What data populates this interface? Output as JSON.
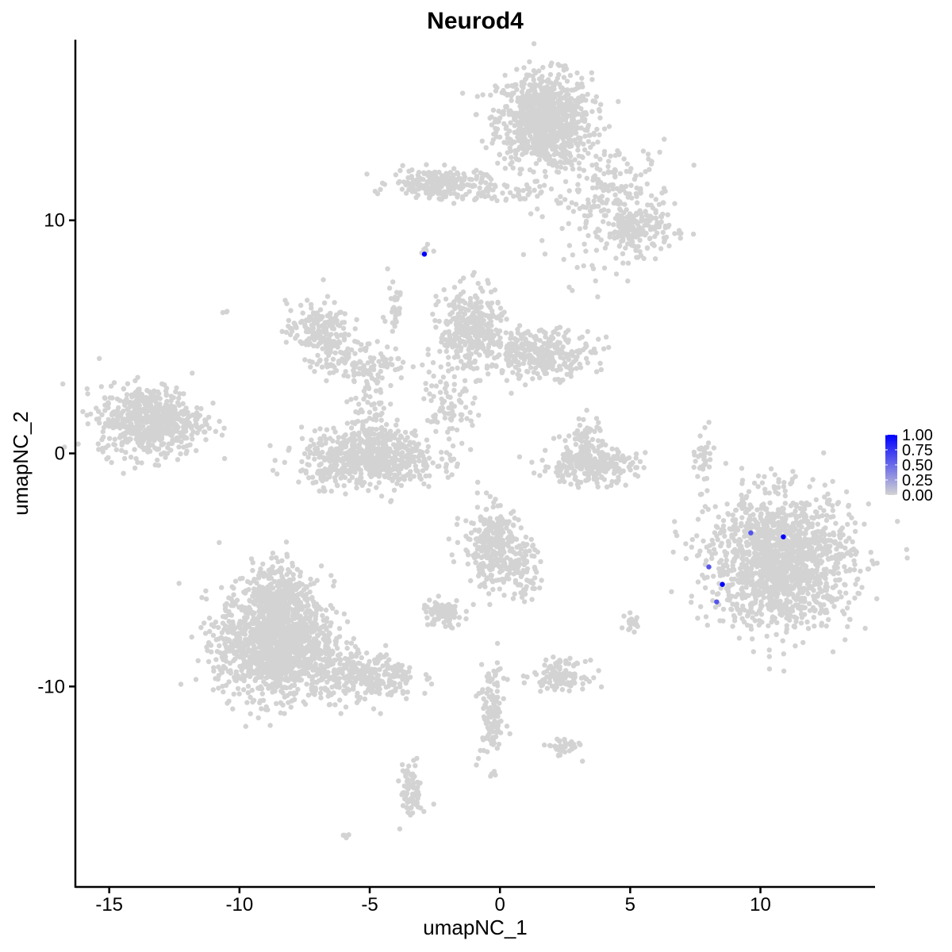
{
  "chart_data": {
    "type": "scatter",
    "title": "Neurod4",
    "xlabel": "umapNC_1",
    "ylabel": "umapNC_2",
    "xlim": [
      -16.3,
      14.4
    ],
    "ylim": [
      -18.6,
      17.75
    ],
    "xticks": [
      -15,
      -10,
      -5,
      0,
      5,
      10
    ],
    "yticks": [
      -10,
      0,
      10
    ],
    "xtick_labels": [
      "-15",
      "-10",
      "-5",
      "0",
      "5",
      "10"
    ],
    "ytick_labels": [
      "-10",
      "0",
      "10"
    ],
    "grid": false,
    "low_color": "#d3d3d3",
    "high_color": "#0000ff",
    "legend": {
      "placement": "right",
      "range": [
        0,
        1
      ],
      "labels": [
        "1.00",
        "0.75",
        "0.50",
        "0.25",
        "0.00"
      ],
      "values": [
        1.0,
        0.75,
        0.5,
        0.25,
        0.0
      ]
    },
    "background_clusters_expression": 0,
    "clusters": [
      {
        "cx": 1.7,
        "cy": 14.3,
        "sx": 0.9,
        "sy": 1.0,
        "n": 900
      },
      {
        "cx": 4.3,
        "cy": 10.8,
        "sx": 1.2,
        "sy": 1.3,
        "n": 250
      },
      {
        "cx": 5.3,
        "cy": 9.6,
        "sx": 0.6,
        "sy": 0.5,
        "n": 150
      },
      {
        "cx": -2.4,
        "cy": 11.6,
        "sx": 0.9,
        "sy": 0.3,
        "n": 220
      },
      {
        "cx": -0.3,
        "cy": 11.1,
        "sx": 1.0,
        "sy": 0.2,
        "n": 60
      },
      {
        "cx": -13.4,
        "cy": 1.4,
        "sx": 1.0,
        "sy": 0.75,
        "n": 600
      },
      {
        "cx": -7.0,
        "cy": 5.3,
        "sx": 0.6,
        "sy": 0.6,
        "n": 180
      },
      {
        "cx": -5.3,
        "cy": 3.9,
        "sx": 0.9,
        "sy": 0.4,
        "n": 120
      },
      {
        "cx": -5.0,
        "cy": -0.2,
        "sx": 1.3,
        "sy": 0.6,
        "n": 650
      },
      {
        "cx": -4.9,
        "cy": 1.5,
        "sx": 0.4,
        "sy": 1.0,
        "n": 80
      },
      {
        "cx": -1.1,
        "cy": 5.3,
        "sx": 0.6,
        "sy": 0.9,
        "n": 350
      },
      {
        "cx": 1.6,
        "cy": 4.3,
        "sx": 1.0,
        "sy": 0.5,
        "n": 300
      },
      {
        "cx": -2.0,
        "cy": 2.4,
        "sx": 0.5,
        "sy": 0.9,
        "n": 60
      },
      {
        "cx": 3.4,
        "cy": -0.5,
        "sx": 0.9,
        "sy": 0.4,
        "n": 260
      },
      {
        "cx": 3.3,
        "cy": 0.6,
        "sx": 0.3,
        "sy": 0.6,
        "n": 60
      },
      {
        "cx": 10.8,
        "cy": -4.6,
        "sx": 1.35,
        "sy": 1.4,
        "n": 1500
      },
      {
        "cx": 7.8,
        "cy": -0.3,
        "sx": 0.15,
        "sy": 0.6,
        "n": 40
      },
      {
        "cx": -0.3,
        "cy": -4.0,
        "sx": 0.55,
        "sy": 0.9,
        "n": 300
      },
      {
        "cx": 0.8,
        "cy": -5.0,
        "sx": 0.4,
        "sy": 0.6,
        "n": 80
      },
      {
        "cx": -8.6,
        "cy": -8.1,
        "sx": 1.1,
        "sy": 1.2,
        "n": 1400
      },
      {
        "cx": -8.5,
        "cy": -6.0,
        "sx": 0.5,
        "sy": 0.7,
        "n": 250
      },
      {
        "cx": -5.2,
        "cy": -9.6,
        "sx": 1.0,
        "sy": 0.5,
        "n": 300
      },
      {
        "cx": -2.2,
        "cy": -6.9,
        "sx": 0.4,
        "sy": 0.3,
        "n": 90
      },
      {
        "cx": 2.3,
        "cy": -9.5,
        "sx": 0.5,
        "sy": 0.3,
        "n": 120
      },
      {
        "cx": -0.3,
        "cy": -11.2,
        "sx": 0.25,
        "sy": 1.1,
        "n": 120
      },
      {
        "cx": 2.4,
        "cy": -12.6,
        "sx": 0.3,
        "sy": 0.2,
        "n": 40
      },
      {
        "cx": -3.4,
        "cy": -14.5,
        "sx": 0.2,
        "sy": 0.6,
        "n": 80
      },
      {
        "cx": 5.1,
        "cy": -7.3,
        "sx": 0.15,
        "sy": 0.2,
        "n": 20
      },
      {
        "cx": -10.5,
        "cy": 6.1,
        "sx": 0.05,
        "sy": 0.05,
        "n": 3
      },
      {
        "cx": -4.1,
        "cy": 6.3,
        "sx": 0.2,
        "sy": 0.8,
        "n": 30
      },
      {
        "cx": -1.8,
        "cy": 1.5,
        "sx": 0.5,
        "sy": 0.2,
        "n": 20
      },
      {
        "cx": -6.0,
        "cy": -16.4,
        "sx": 0.1,
        "sy": 0.05,
        "n": 6
      },
      {
        "cx": -2.8,
        "cy": 8.7,
        "sx": 0.1,
        "sy": 0.1,
        "n": 8
      }
    ],
    "expressing_points": [
      {
        "x": -2.9,
        "y": 8.55,
        "value": 1.0
      },
      {
        "x": 10.88,
        "y": -3.58,
        "value": 1.0
      },
      {
        "x": 8.54,
        "y": -5.62,
        "value": 1.0
      },
      {
        "x": 8.02,
        "y": -4.87,
        "value": 0.6
      },
      {
        "x": 8.32,
        "y": -6.37,
        "value": 0.6
      },
      {
        "x": 9.63,
        "y": -3.41,
        "value": 0.6
      }
    ]
  }
}
